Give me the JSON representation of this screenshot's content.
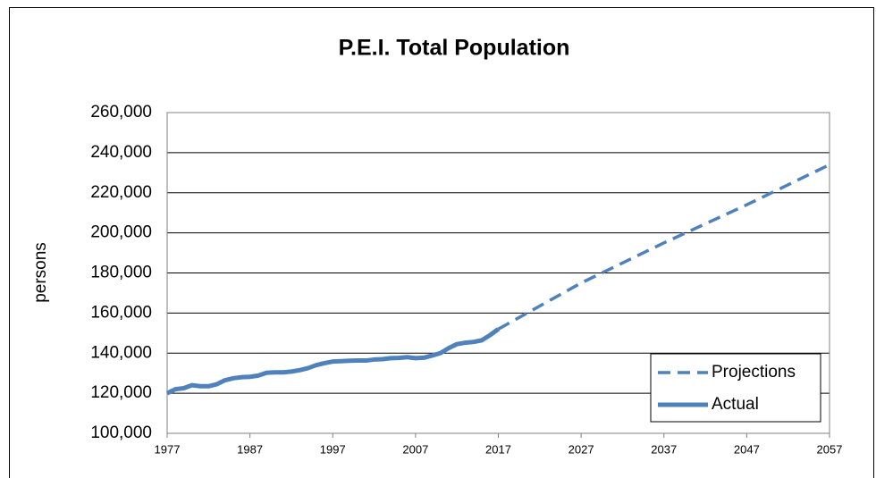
{
  "chart_data": {
    "type": "line",
    "title": "P.E.I. Total Population",
    "ylabel": "persons",
    "xlim": [
      1977,
      2057
    ],
    "xticks": [
      1977,
      1987,
      1997,
      2007,
      2017,
      2027,
      2037,
      2047,
      2057
    ],
    "ylim": [
      100000,
      260000
    ],
    "yticks": [
      {
        "value": 100000,
        "label": "100,000"
      },
      {
        "value": 120000,
        "label": "120,000"
      },
      {
        "value": 140000,
        "label": "140,000"
      },
      {
        "value": 160000,
        "label": "160,000"
      },
      {
        "value": 180000,
        "label": "180,000"
      },
      {
        "value": 200000,
        "label": "200,000"
      },
      {
        "value": 220000,
        "label": "220,000"
      },
      {
        "value": 240000,
        "label": "240,000"
      },
      {
        "value": 260000,
        "label": "260,000"
      }
    ],
    "grid": true,
    "legend": "lower right",
    "series": [
      {
        "name": "Projections",
        "color": "#4f81bd",
        "dashed": true,
        "x": [
          2017,
          2022,
          2027,
          2032,
          2037,
          2042,
          2047,
          2052,
          2057
        ],
        "values": [
          152000,
          163500,
          175000,
          185000,
          195000,
          204500,
          214000,
          224000,
          234000
        ]
      },
      {
        "name": "Actual",
        "color": "#4f81bd",
        "dashed": false,
        "x": [
          1977,
          1978,
          1979,
          1980,
          1981,
          1982,
          1983,
          1984,
          1985,
          1986,
          1987,
          1988,
          1989,
          1990,
          1991,
          1992,
          1993,
          1994,
          1995,
          1996,
          1997,
          1998,
          1999,
          2000,
          2001,
          2002,
          2003,
          2004,
          2005,
          2006,
          2007,
          2008,
          2009,
          2010,
          2011,
          2012,
          2013,
          2014,
          2015,
          2016,
          2017
        ],
        "values": [
          120000,
          122000,
          122500,
          124000,
          123500,
          123500,
          124500,
          126500,
          127500,
          128000,
          128200,
          128800,
          130200,
          130400,
          130400,
          130800,
          131500,
          132500,
          134000,
          135000,
          135800,
          136000,
          136200,
          136300,
          136300,
          136800,
          137000,
          137500,
          137600,
          138000,
          137500,
          137700,
          138800,
          140000,
          142500,
          144500,
          145200,
          145600,
          146400,
          149000,
          152000
        ]
      }
    ]
  }
}
